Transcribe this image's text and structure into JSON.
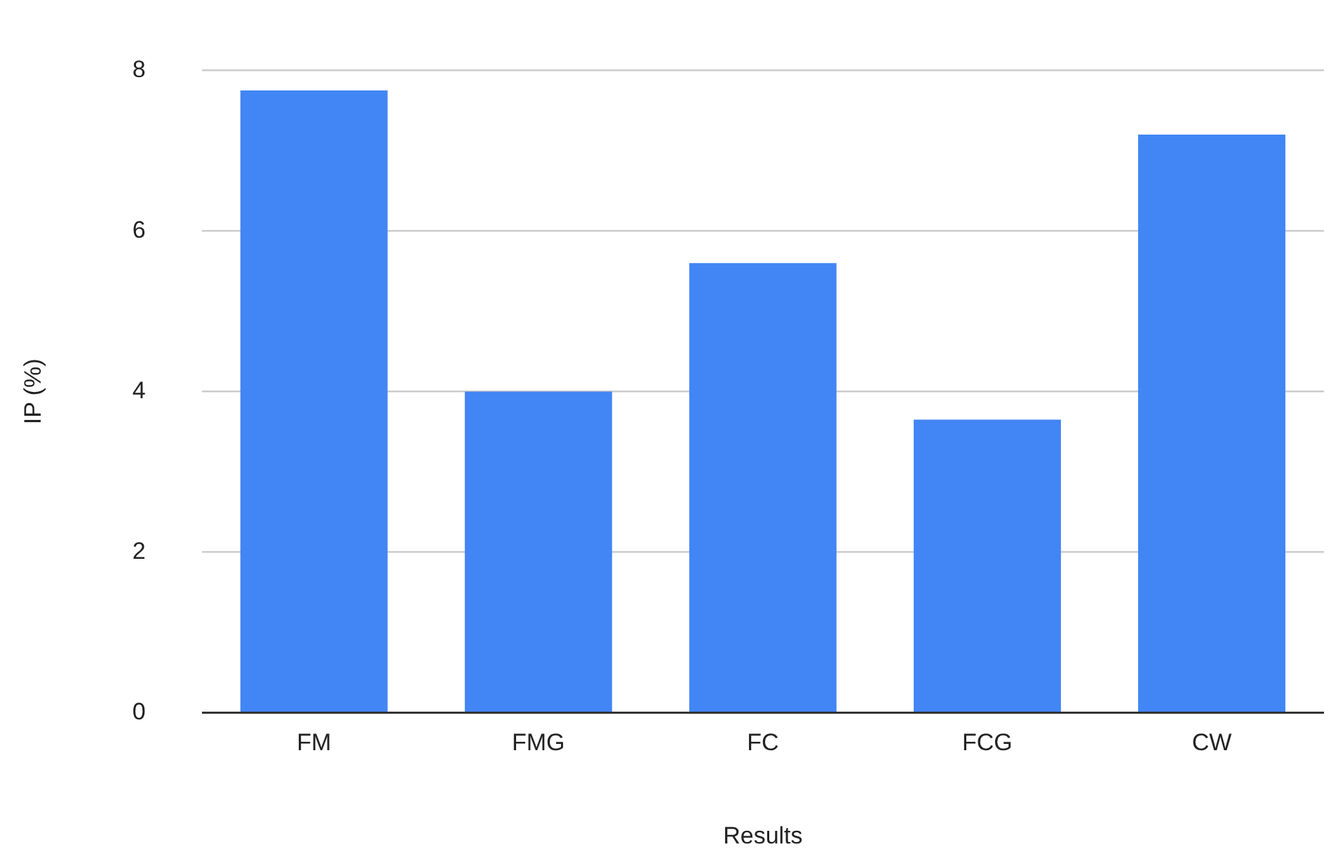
{
  "chart_data": {
    "type": "bar",
    "xlabel": "Results",
    "ylabel": "IP (%)",
    "categories": [
      "FM",
      "FMG",
      "FC",
      "FCG",
      "CW"
    ],
    "series": [
      {
        "color": "#4285f4",
        "values": [
          7.75,
          4.0,
          5.6,
          3.65,
          7.2
        ]
      }
    ],
    "ylim": [
      0,
      8
    ],
    "yticks": [
      0,
      2,
      4,
      6,
      8
    ],
    "grid": "y",
    "legend": false
  }
}
